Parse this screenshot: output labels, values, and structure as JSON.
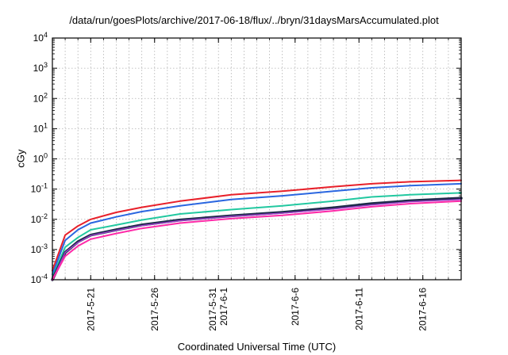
{
  "chart_data": {
    "type": "line",
    "title": "/data/run/goesPlots/archive/2017-06-18/flux/../bryn/31daysMarsAccumulated.plot",
    "xlabel": "Coordinated Universal Time (UTC)",
    "ylabel": "cGy",
    "y_scale": "log",
    "ylim": [
      0.0001,
      10000
    ],
    "xlim": [
      "2017-05-18",
      "2017-06-19"
    ],
    "grid": true,
    "x_ticks": [
      {
        "x": "2017-05-21",
        "lines": [
          "2017-5-21"
        ]
      },
      {
        "x": "2017-05-26",
        "lines": [
          "2017-5-26"
        ]
      },
      {
        "x": "2017-05-31",
        "lines": [
          "2017-5-31",
          "2017-6-1"
        ]
      },
      {
        "x": "2017-06-06",
        "lines": [
          "2017-6-6"
        ]
      },
      {
        "x": "2017-06-11",
        "lines": [
          "2017-6-11"
        ]
      },
      {
        "x": "2017-06-16",
        "lines": [
          "2017-6-16"
        ]
      }
    ],
    "y_ticks": [
      {
        "value": 0.0001,
        "base": "10",
        "exp": "-4"
      },
      {
        "value": 0.001,
        "base": "10",
        "exp": "-3"
      },
      {
        "value": 0.01,
        "base": "10",
        "exp": "-2"
      },
      {
        "value": 0.1,
        "base": "10",
        "exp": "-1"
      },
      {
        "value": 1,
        "base": "10",
        "exp": "0"
      },
      {
        "value": 10,
        "base": "10",
        "exp": "1"
      },
      {
        "value": 100,
        "base": "10",
        "exp": "2"
      },
      {
        "value": 1000,
        "base": "10",
        "exp": "3"
      },
      {
        "value": 10000,
        "base": "10",
        "exp": "4"
      }
    ],
    "x": [
      "2017-05-18",
      "2017-05-19",
      "2017-05-20",
      "2017-05-21",
      "2017-05-23",
      "2017-05-25",
      "2017-05-28",
      "2017-06-01",
      "2017-06-05",
      "2017-06-09",
      "2017-06-12",
      "2017-06-15",
      "2017-06-19"
    ],
    "series": [
      {
        "color": "#e8202a",
        "width": 2,
        "values": [
          0.0002,
          0.003,
          0.006,
          0.01,
          0.017,
          0.025,
          0.04,
          0.065,
          0.085,
          0.12,
          0.15,
          0.175,
          0.195
        ]
      },
      {
        "color": "#2a66e0",
        "width": 2,
        "values": [
          0.00015,
          0.002,
          0.0045,
          0.0075,
          0.012,
          0.018,
          0.028,
          0.045,
          0.06,
          0.085,
          0.11,
          0.13,
          0.15
        ]
      },
      {
        "color": "#22c8a0",
        "width": 2,
        "values": [
          0.00012,
          0.0012,
          0.0025,
          0.0045,
          0.0065,
          0.0095,
          0.015,
          0.021,
          0.028,
          0.04,
          0.055,
          0.065,
          0.075
        ]
      },
      {
        "color": "#1e2a4a",
        "width": 3.5,
        "values": [
          0.0001,
          0.0008,
          0.0018,
          0.003,
          0.0045,
          0.0065,
          0.0095,
          0.013,
          0.017,
          0.024,
          0.033,
          0.041,
          0.05
        ]
      },
      {
        "color": "#9a40c8",
        "width": 1.5,
        "values": [
          0.0001,
          0.0008,
          0.0017,
          0.0029,
          0.0043,
          0.0062,
          0.009,
          0.0125,
          0.016,
          0.022,
          0.03,
          0.038,
          0.045
        ]
      },
      {
        "color": "#ff2aa8",
        "width": 2,
        "values": [
          0.0001,
          0.0006,
          0.0013,
          0.0022,
          0.0034,
          0.005,
          0.0075,
          0.0105,
          0.0135,
          0.019,
          0.026,
          0.033,
          0.04
        ]
      }
    ]
  }
}
